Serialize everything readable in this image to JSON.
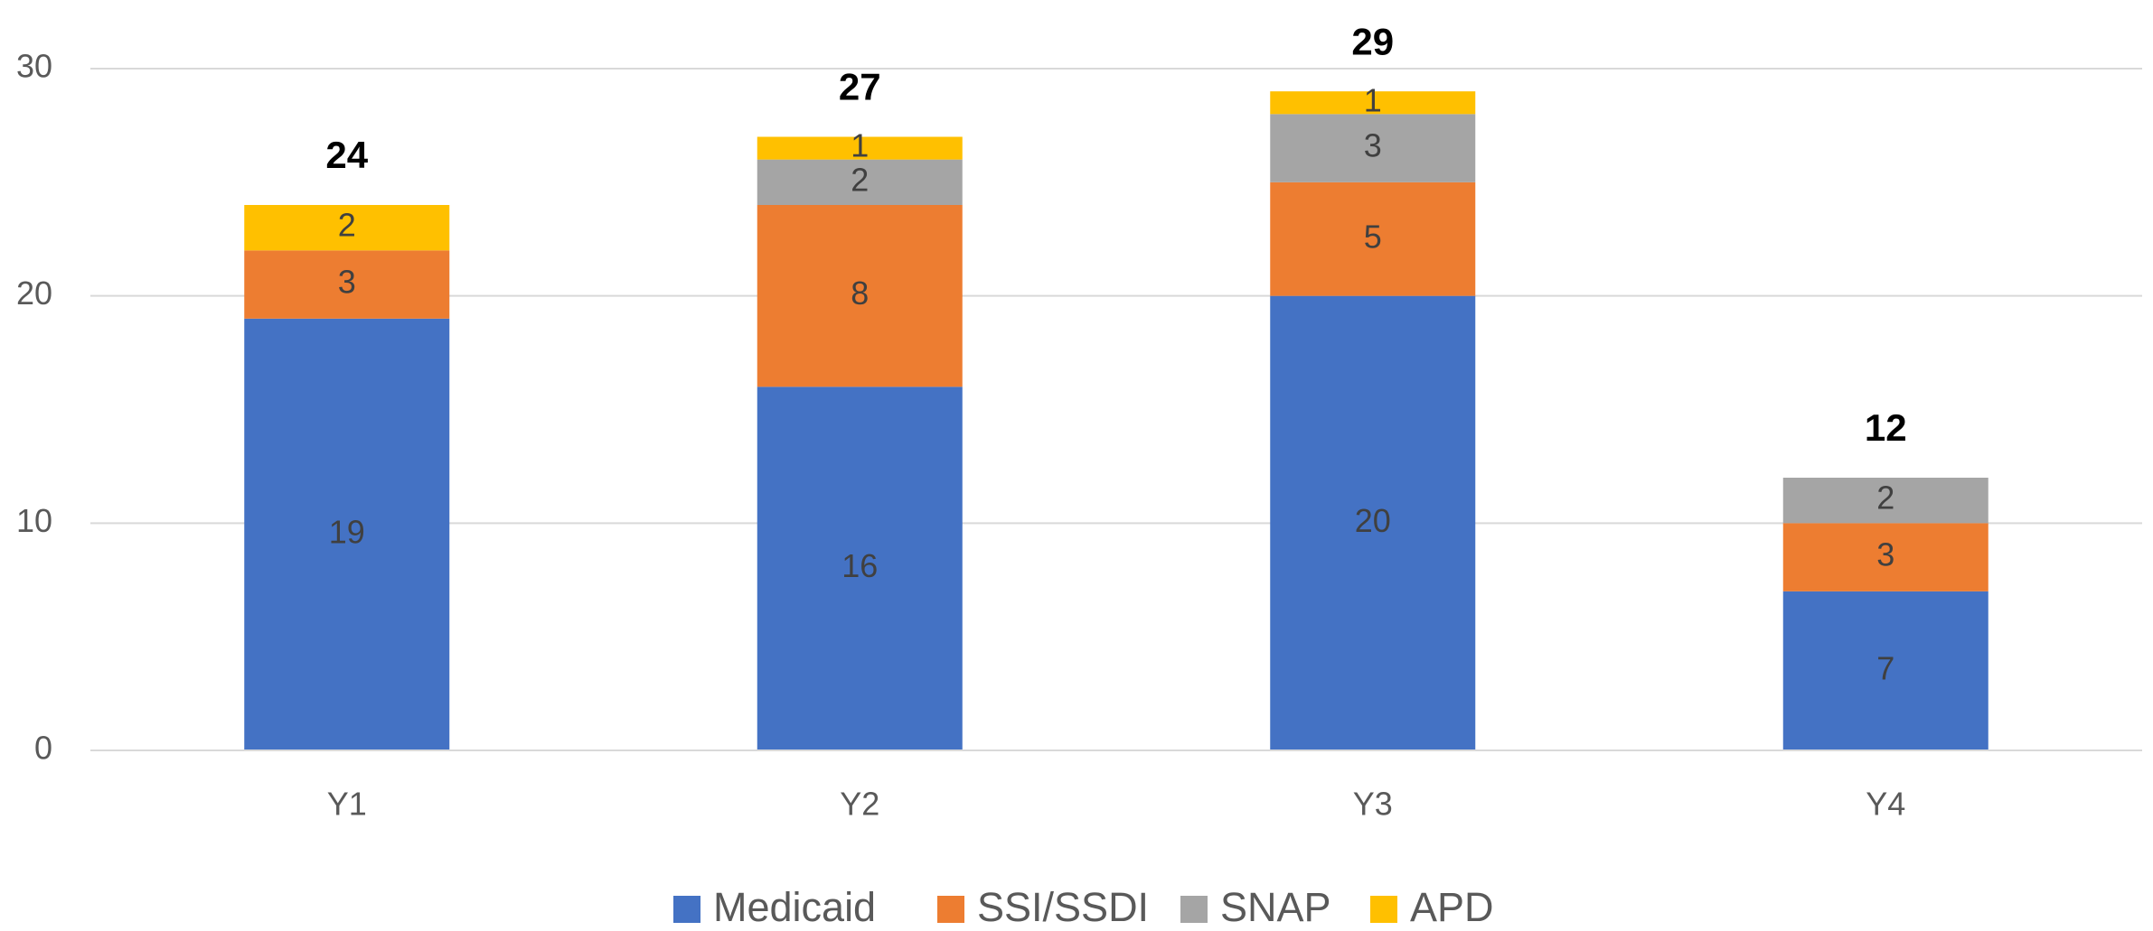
{
  "chart_data": {
    "type": "stacked_bar",
    "categories": [
      "Y1",
      "Y2",
      "Y3",
      "Y4"
    ],
    "series": [
      {
        "name": "Medicaid",
        "color": "#4472c4",
        "values": [
          19,
          16,
          20,
          7
        ]
      },
      {
        "name": "SSI/SSDI",
        "color": "#ed7d31",
        "values": [
          3,
          8,
          5,
          3
        ]
      },
      {
        "name": "SNAP",
        "color": "#a5a5a5",
        "values": [
          null,
          2,
          3,
          2
        ]
      },
      {
        "name": "APD",
        "color": "#ffc000",
        "values": [
          2,
          1,
          1,
          null
        ]
      }
    ],
    "totals": [
      24,
      27,
      29,
      12
    ],
    "ylim": [
      0,
      30
    ],
    "yticks": [
      0,
      10,
      20,
      30
    ],
    "grid": true,
    "legend": "bottom"
  }
}
